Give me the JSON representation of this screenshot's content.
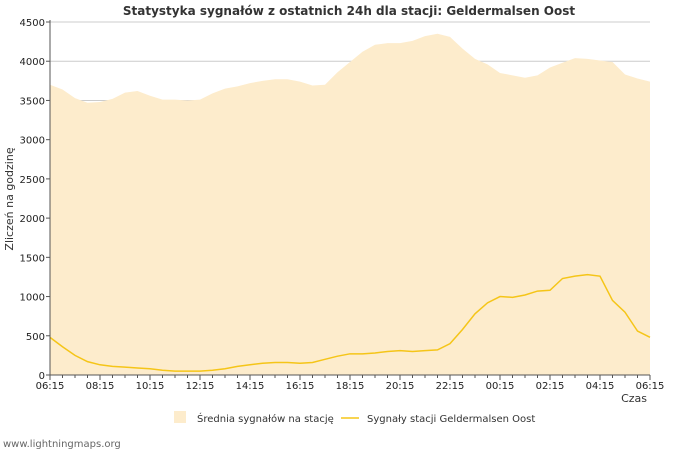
{
  "chart_data": {
    "type": "area",
    "title": "Statystyka sygnałów z ostatnich 24h dla stacji: Geldermalsen Oost",
    "xlabel": "Czas",
    "ylabel": "Zliczeń na godzinę",
    "ylim": [
      0,
      4500
    ],
    "y_ticks": [
      "0",
      "500",
      "1000",
      "1500",
      "2000",
      "2500",
      "3000",
      "3500",
      "4000",
      "4500"
    ],
    "x_tick_labels": [
      "06:15",
      "08:15",
      "10:15",
      "12:15",
      "14:15",
      "16:15",
      "18:15",
      "20:15",
      "22:15",
      "00:15",
      "02:15",
      "04:15",
      "06:15"
    ],
    "x_hours": [
      0,
      0.5,
      1,
      1.5,
      2,
      2.5,
      3,
      3.5,
      4,
      4.5,
      5,
      5.5,
      6,
      6.5,
      7,
      7.5,
      8,
      8.5,
      9,
      9.5,
      10,
      10.5,
      11,
      11.5,
      12,
      12.5,
      13,
      13.5,
      14,
      14.5,
      15,
      15.5,
      16,
      16.5,
      17,
      17.5,
      18,
      18.5,
      19,
      19.5,
      20,
      20.5,
      21,
      21.5,
      22,
      22.5,
      23,
      23.5,
      24
    ],
    "series": [
      {
        "name": "Średnia sygnałów na stację",
        "style": "area",
        "color": "#fdeccc",
        "values": [
          3700,
          3640,
          3530,
          3470,
          3480,
          3520,
          3600,
          3620,
          3560,
          3510,
          3510,
          3500,
          3510,
          3590,
          3650,
          3680,
          3720,
          3750,
          3770,
          3770,
          3740,
          3690,
          3700,
          3860,
          3990,
          4120,
          4210,
          4230,
          4230,
          4260,
          4320,
          4350,
          4310,
          4160,
          4030,
          3960,
          3850,
          3820,
          3790,
          3820,
          3920,
          3980,
          4040,
          4030,
          4010,
          3990,
          3830,
          3780,
          3740
        ]
      },
      {
        "name": "Sygnały stacji Geldermalsen Oost",
        "style": "line",
        "color": "#f5c518",
        "values": [
          480,
          360,
          250,
          170,
          130,
          110,
          100,
          90,
          80,
          60,
          50,
          50,
          50,
          60,
          80,
          110,
          130,
          150,
          160,
          160,
          150,
          160,
          200,
          240,
          270,
          270,
          280,
          300,
          310,
          300,
          310,
          320,
          400,
          580,
          780,
          920,
          1000,
          990,
          1020,
          1070,
          1080,
          1230,
          1260,
          1280,
          1260,
          950,
          800,
          560,
          480
        ]
      }
    ]
  },
  "footer": "www.lightningmaps.org",
  "colors": {
    "background": "#ffffff",
    "grid": "#cccccc",
    "area": "#fdeccc",
    "line": "#f5c518"
  }
}
